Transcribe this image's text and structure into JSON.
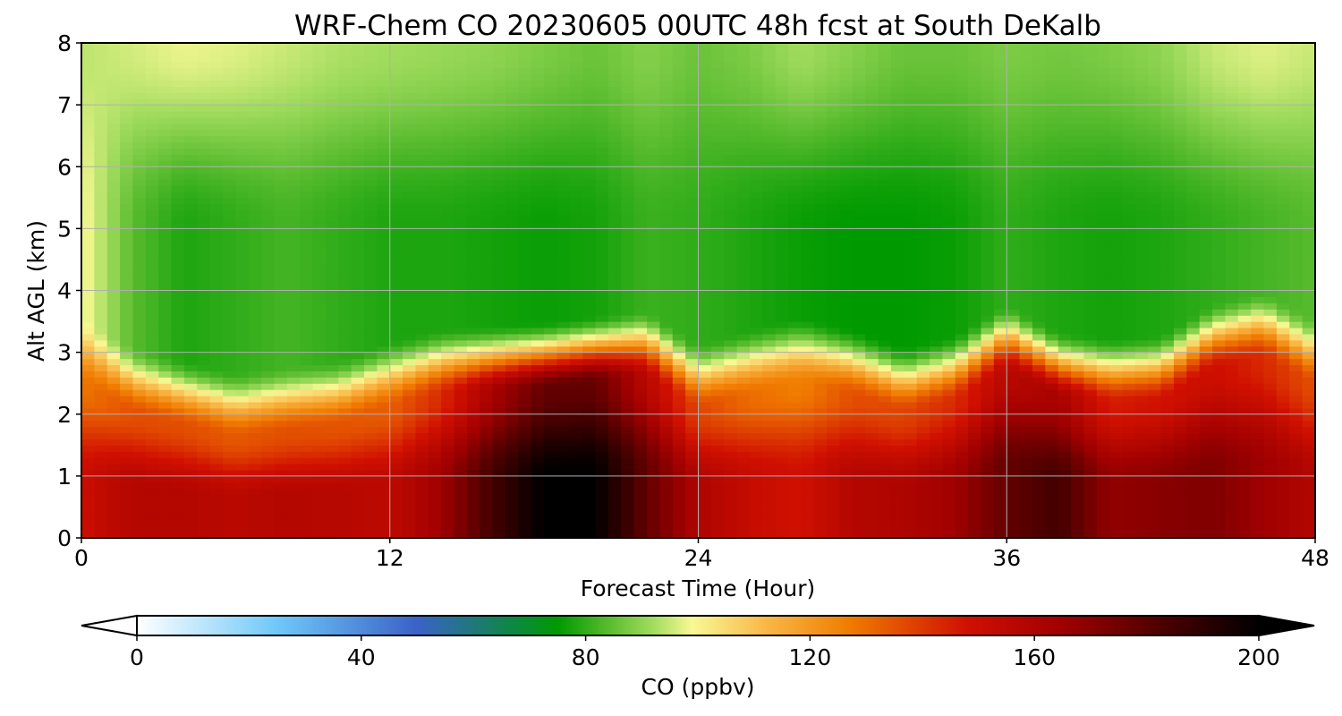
{
  "chart_data": {
    "type": "heatmap",
    "title": "WRF-Chem CO  20230605 00UTC 48h fcst at South DeKalb",
    "xlabel": "Forecast Time (Hour)",
    "ylabel": "Alt AGL (km)",
    "xlim": [
      0,
      48
    ],
    "ylim": [
      0,
      8
    ],
    "xticks": [
      "0",
      "12",
      "24",
      "36",
      "48"
    ],
    "yticks": [
      "0",
      "1",
      "2",
      "3",
      "4",
      "5",
      "6",
      "7",
      "8"
    ],
    "grid": true,
    "colorbar": {
      "label": "CO  (ppbv)",
      "range": [
        0,
        200
      ],
      "ticks": [
        "0",
        "40",
        "80",
        "120",
        "160",
        "200"
      ],
      "extend": "both",
      "stops": [
        {
          "v": 0,
          "c": "#ffffff"
        },
        {
          "v": 25,
          "c": "#6fc8f8"
        },
        {
          "v": 50,
          "c": "#3a62c8"
        },
        {
          "v": 68,
          "c": "#0a8a3a"
        },
        {
          "v": 75,
          "c": "#009a00"
        },
        {
          "v": 84,
          "c": "#58bb2e"
        },
        {
          "v": 92,
          "c": "#a2dc5e"
        },
        {
          "v": 99,
          "c": "#f8f894"
        },
        {
          "v": 112,
          "c": "#f9b848"
        },
        {
          "v": 127,
          "c": "#f07c00"
        },
        {
          "v": 148,
          "c": "#d01000"
        },
        {
          "v": 165,
          "c": "#a00000"
        },
        {
          "v": 182,
          "c": "#500000"
        },
        {
          "v": 200,
          "c": "#000000"
        }
      ]
    },
    "field": {
      "hours": [
        0,
        2,
        4,
        6,
        8,
        10,
        12,
        14,
        16,
        18,
        20,
        22,
        24,
        26,
        28,
        30,
        32,
        34,
        36,
        38,
        40,
        42,
        44,
        46,
        48
      ],
      "boundary_km": [
        3.0,
        2.5,
        2.3,
        2.1,
        2.2,
        2.3,
        2.6,
        2.8,
        2.85,
        2.9,
        3.0,
        3.1,
        2.55,
        2.8,
        3.0,
        2.8,
        2.5,
        2.7,
        3.2,
        2.75,
        2.65,
        2.7,
        3.2,
        3.4,
        2.95
      ],
      "lower_ppbv": [
        150,
        158,
        158,
        156,
        158,
        157,
        155,
        165,
        185,
        200,
        200,
        178,
        160,
        152,
        148,
        158,
        160,
        165,
        178,
        185,
        168,
        170,
        172,
        165,
        158
      ],
      "upper_min_ppbv": [
        100,
        84,
        78,
        80,
        82,
        80,
        78,
        78,
        77,
        76,
        77,
        81,
        80,
        78,
        76,
        75,
        75,
        76,
        80,
        78,
        77,
        78,
        80,
        82,
        84
      ],
      "top_ppbv": [
        94,
        96,
        98,
        97,
        95,
        93,
        92,
        91,
        90,
        88,
        86,
        89,
        86,
        88,
        92,
        89,
        86,
        86,
        88,
        87,
        88,
        90,
        95,
        97,
        95
      ]
    }
  }
}
